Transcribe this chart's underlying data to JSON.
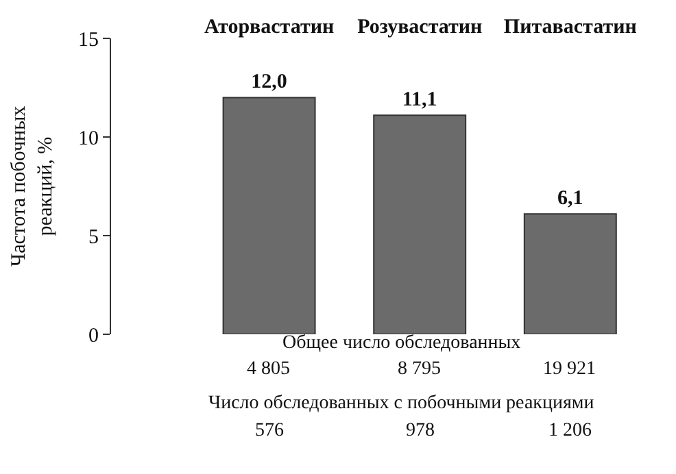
{
  "chart_data": {
    "type": "bar",
    "categories": [
      "Аторвастатин",
      "Розувастатин",
      "Питавастатин"
    ],
    "values": [
      12.0,
      11.1,
      6.1
    ],
    "value_labels": [
      "12,0",
      "11,1",
      "6,1"
    ],
    "color": "#6b6b6b",
    "ylabel": "Частота побочных\nреакций, %",
    "ylim": [
      0,
      15
    ],
    "yticks": [
      0,
      5,
      10,
      15
    ],
    "annotations": [
      "Общее число обследованных",
      "4 805",
      "8 795",
      "19 921",
      "Число обследованных с побочными реакциями",
      "576",
      "978",
      "1 206"
    ]
  }
}
